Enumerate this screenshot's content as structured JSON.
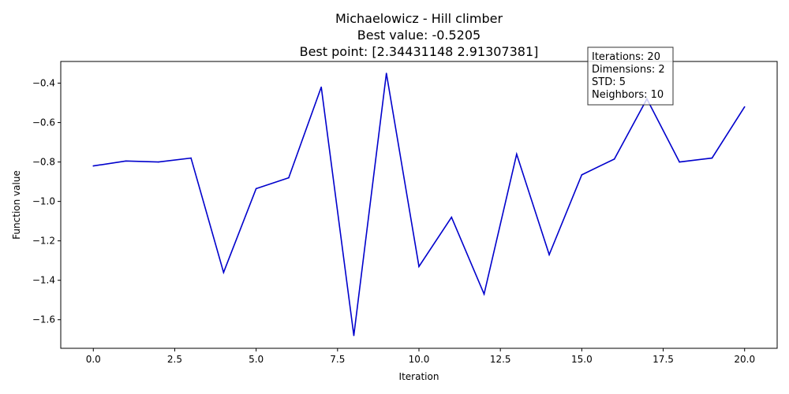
{
  "chart_data": {
    "type": "line",
    "title_lines": [
      "Michaelowicz - Hill climber",
      "Best value: -0.5205",
      "Best point: [2.34431148 2.91307381]"
    ],
    "xlabel": "Iteration",
    "ylabel": "Function value",
    "xlim": [
      -1.0,
      21.0
    ],
    "ylim": [
      -1.745,
      -0.29
    ],
    "xticks": [
      0.0,
      2.5,
      5.0,
      7.5,
      10.0,
      12.5,
      15.0,
      17.5,
      20.0
    ],
    "xtick_labels": [
      "0.0",
      "2.5",
      "5.0",
      "7.5",
      "10.0",
      "12.5",
      "15.0",
      "17.5",
      "20.0"
    ],
    "yticks": [
      -1.6,
      -1.4,
      -1.2,
      -1.0,
      -0.8,
      -0.6,
      -0.4
    ],
    "ytick_labels": [
      "−1.6",
      "−1.4",
      "−1.2",
      "−1.0",
      "−0.8",
      "−0.6",
      "−0.4"
    ],
    "grid": false,
    "series": [
      {
        "color": "#0000cc",
        "x": [
          0,
          1,
          2,
          3,
          4,
          5,
          6,
          7,
          8,
          9,
          10,
          11,
          12,
          13,
          14,
          15,
          16,
          17,
          18,
          19,
          20
        ],
        "values": [
          -0.82,
          -0.795,
          -0.8,
          -0.78,
          -1.36,
          -0.935,
          -0.88,
          -0.42,
          -1.68,
          -0.35,
          -1.33,
          -1.08,
          -1.47,
          -0.76,
          -1.27,
          -0.865,
          -0.785,
          -0.48,
          -0.8,
          -0.78,
          -0.52
        ]
      }
    ],
    "annotation": {
      "lines": [
        "Iterations: 20",
        "Dimensions: 2",
        "STD: 5",
        "Neighbors: 10"
      ]
    }
  }
}
